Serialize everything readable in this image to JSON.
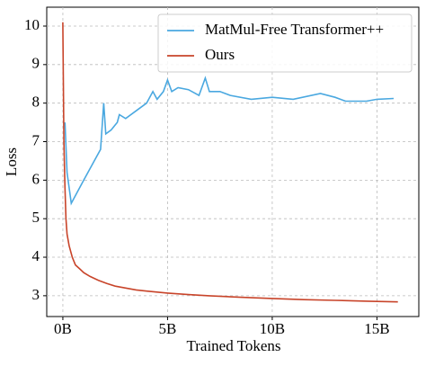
{
  "chart_data": {
    "type": "line",
    "xlabel": "Trained Tokens",
    "ylabel": "Loss",
    "series": [
      {
        "name": "MatMul-Free Transformer++",
        "color": "#4aa8e0",
        "x": [
          0.1,
          0.2,
          0.4,
          0.7,
          1.0,
          1.5,
          1.8,
          1.95,
          2.05,
          2.3,
          2.6,
          2.7,
          3.0,
          3.5,
          4.0,
          4.3,
          4.5,
          4.8,
          5.0,
          5.2,
          5.5,
          6.0,
          6.5,
          6.8,
          7.0,
          7.5,
          8.0,
          9.0,
          10.0,
          11.0,
          12.3,
          13.0,
          13.5,
          14.5,
          15.0,
          15.8
        ],
        "values": [
          7.5,
          6.2,
          5.4,
          5.7,
          6.0,
          6.5,
          6.8,
          8.0,
          7.2,
          7.3,
          7.5,
          7.7,
          7.6,
          7.8,
          8.0,
          8.3,
          8.1,
          8.3,
          8.6,
          8.3,
          8.4,
          8.35,
          8.2,
          8.65,
          8.3,
          8.3,
          8.2,
          8.1,
          8.15,
          8.1,
          8.25,
          8.15,
          8.05,
          8.05,
          8.1,
          8.12
        ]
      },
      {
        "name": "Ours",
        "color": "#c8442a",
        "x": [
          0.0,
          0.05,
          0.1,
          0.15,
          0.2,
          0.3,
          0.45,
          0.6,
          0.8,
          1.0,
          1.3,
          1.7,
          2.1,
          2.5,
          3.0,
          3.5,
          4.0,
          5.0,
          6.0,
          7.0,
          8.5,
          10.0,
          11.5,
          13.0,
          14.5,
          16.0
        ],
        "values": [
          10.1,
          7.0,
          5.8,
          5.0,
          4.6,
          4.3,
          4.0,
          3.8,
          3.7,
          3.6,
          3.5,
          3.4,
          3.32,
          3.25,
          3.2,
          3.15,
          3.12,
          3.07,
          3.03,
          3.0,
          2.96,
          2.93,
          2.9,
          2.88,
          2.86,
          2.84
        ]
      }
    ],
    "xlim": [
      -0.77,
      17.0
    ],
    "ylim": [
      2.46,
      10.49
    ],
    "xticks": [
      {
        "value": 0,
        "label": "0B"
      },
      {
        "value": 5,
        "label": "5B"
      },
      {
        "value": 10,
        "label": "10B"
      },
      {
        "value": 15,
        "label": "15B"
      }
    ],
    "yticks": [
      3,
      4,
      5,
      6,
      7,
      8,
      9,
      10
    ],
    "grid": true,
    "legend": "upper right"
  }
}
